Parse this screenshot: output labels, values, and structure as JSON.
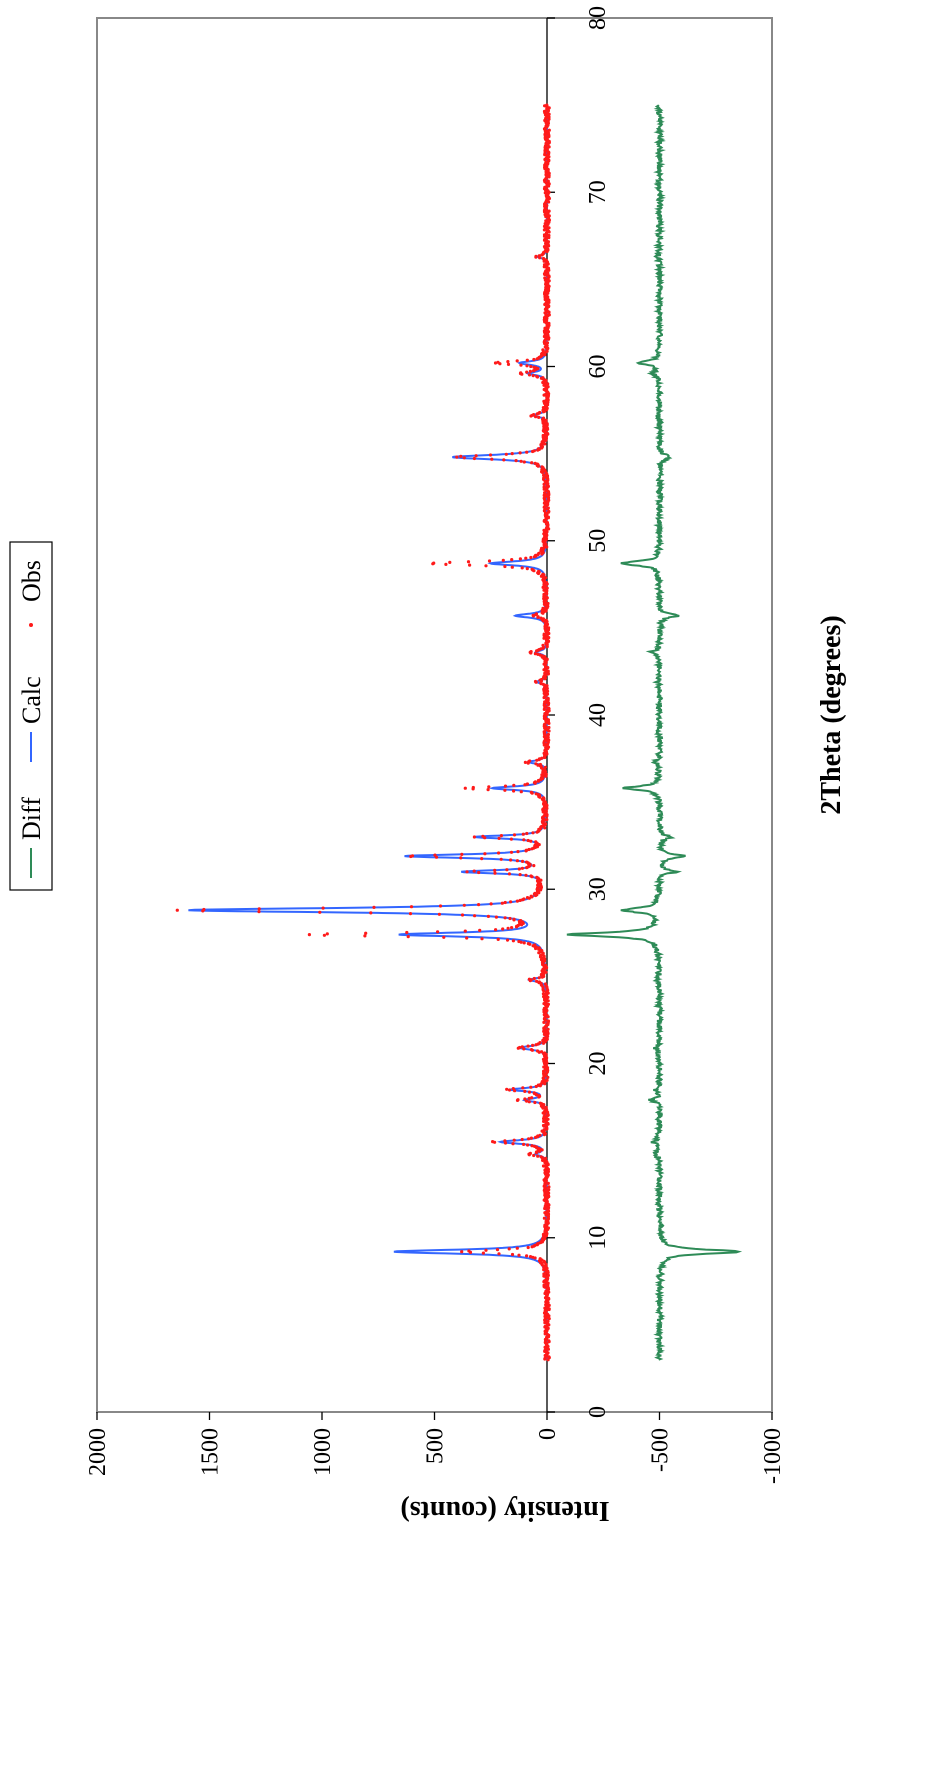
{
  "chart_data": {
    "type": "line",
    "orientation": "rotated 90 degrees counter-clockwise",
    "xlabel": "2Theta (degrees)",
    "ylabel": "Intensity (counts)",
    "xlim": [
      0,
      80
    ],
    "ylim": [
      -1000,
      2000
    ],
    "x_ticks": [
      "0",
      "10",
      "20",
      "30",
      "40",
      "50",
      "60",
      "70",
      "80"
    ],
    "y_ticks": [
      "-1000",
      "-500",
      "0",
      "500",
      "1000",
      "1500",
      "2000"
    ],
    "x_tick_values": [
      0,
      10,
      20,
      30,
      40,
      50,
      60,
      70,
      80
    ],
    "y_tick_values": [
      -1000,
      -500,
      0,
      500,
      1000,
      1500,
      2000
    ],
    "grid": false,
    "legend_position": "top",
    "colors": {
      "diff": "#2e8b57",
      "calc": "#3366ff",
      "obs": "#ff1a1a",
      "frame": "#888888"
    },
    "series": [
      {
        "name": "Diff",
        "style": "line",
        "offset": -500
      },
      {
        "name": "Calc",
        "style": "line"
      },
      {
        "name": "Obs",
        "style": "points"
      }
    ],
    "peaks": [
      {
        "x": 9.2,
        "calc": 680,
        "obs": 370,
        "diff": -360,
        "width": 0.28
      },
      {
        "x": 14.8,
        "calc": 45,
        "obs": 70,
        "diff": 20,
        "width": 0.22
      },
      {
        "x": 15.5,
        "calc": 205,
        "obs": 235,
        "diff": 30,
        "width": 0.25
      },
      {
        "x": 17.9,
        "calc": 95,
        "obs": 120,
        "diff": 40,
        "width": 0.22
      },
      {
        "x": 18.5,
        "calc": 160,
        "obs": 175,
        "diff": 20,
        "width": 0.22
      },
      {
        "x": 20.9,
        "calc": 120,
        "obs": 125,
        "diff": 20,
        "width": 0.25
      },
      {
        "x": 24.8,
        "calc": 75,
        "obs": 70,
        "diff": 10,
        "width": 0.22
      },
      {
        "x": 27.4,
        "calc": 640,
        "obs": 1040,
        "diff": 405,
        "width": 0.28
      },
      {
        "x": 28.8,
        "calc": 1585,
        "obs": 1620,
        "diff": 160,
        "width": 0.3
      },
      {
        "x": 31.0,
        "calc": 360,
        "obs": 330,
        "diff": -70,
        "width": 0.22
      },
      {
        "x": 31.9,
        "calc": 620,
        "obs": 600,
        "diff": -110,
        "width": 0.25
      },
      {
        "x": 33.0,
        "calc": 310,
        "obs": 300,
        "diff": -50,
        "width": 0.22
      },
      {
        "x": 35.8,
        "calc": 240,
        "obs": 360,
        "diff": 160,
        "width": 0.25
      },
      {
        "x": 37.3,
        "calc": 80,
        "obs": 90,
        "diff": 20,
        "width": 0.22
      },
      {
        "x": 41.9,
        "calc": 45,
        "obs": 40,
        "diff": 10,
        "width": 0.22
      },
      {
        "x": 43.6,
        "calc": 50,
        "obs": 80,
        "diff": 40,
        "width": 0.22
      },
      {
        "x": 45.7,
        "calc": 140,
        "obs": 60,
        "diff": -80,
        "width": 0.25
      },
      {
        "x": 48.7,
        "calc": 250,
        "obs": 520,
        "diff": 175,
        "width": 0.28
      },
      {
        "x": 54.8,
        "calc": 420,
        "obs": 400,
        "diff": -50,
        "width": 0.3
      },
      {
        "x": 57.2,
        "calc": 60,
        "obs": 70,
        "diff": 10,
        "width": 0.22
      },
      {
        "x": 59.6,
        "calc": 80,
        "obs": 110,
        "diff": 30,
        "width": 0.22
      },
      {
        "x": 60.2,
        "calc": 120,
        "obs": 230,
        "diff": 100,
        "width": 0.25
      },
      {
        "x": 66.3,
        "calc": 40,
        "obs": 40,
        "diff": 10,
        "width": 0.22
      }
    ],
    "data_range": [
      3,
      75
    ]
  }
}
